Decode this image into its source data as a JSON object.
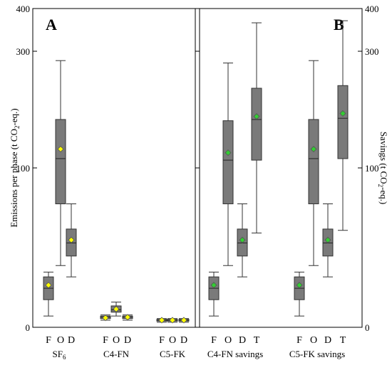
{
  "chart_data": {
    "type": "box",
    "yaxis": {
      "ylim": [
        0,
        400
      ],
      "scale": "sqrt",
      "ticks": [
        0,
        100,
        300,
        400
      ]
    },
    "panels": [
      {
        "letter": "A",
        "ylabel": {
          "main": "Emissions per phase (t CO",
          "sub": "2",
          "tail": "-eq.)"
        },
        "groups": [
          {
            "label": {
              "main": "SF",
              "sub": "6"
            },
            "boxes": [
              {
                "cat": "F",
                "min": 0.5,
                "q1": 3,
                "median": 6,
                "q3": 10,
                "max": 12,
                "mean": 7,
                "mean_color": "#ffff00"
              },
              {
                "cat": "O",
                "min": 15,
                "q1": 60,
                "median": 112,
                "q3": 170,
                "max": 280,
                "mean": 125,
                "mean_color": "#ffff00"
              },
              {
                "cat": "D",
                "min": 10,
                "q1": 20,
                "median": 28,
                "q3": 38,
                "max": 60,
                "mean": 30,
                "mean_color": "#ffff00"
              }
            ]
          },
          {
            "label": {
              "main": "C4-FN",
              "sub": ""
            },
            "boxes": [
              {
                "cat": "F",
                "min": 0.2,
                "q1": 0.3,
                "median": 0.4,
                "q3": 0.5,
                "max": 0.6,
                "mean": 0.35,
                "mean_color": "#ffff00"
              },
              {
                "cat": "O",
                "min": 0.5,
                "q1": 0.9,
                "median": 1.2,
                "q3": 1.8,
                "max": 2.5,
                "mean": 1.3,
                "mean_color": "#ffff00"
              },
              {
                "cat": "D",
                "min": 0.2,
                "q1": 0.3,
                "median": 0.4,
                "q3": 0.5,
                "max": 0.6,
                "mean": 0.4,
                "mean_color": "#ffff00"
              }
            ]
          },
          {
            "label": {
              "main": "C5-FK",
              "sub": ""
            },
            "boxes": [
              {
                "cat": "F",
                "min": 0.1,
                "q1": 0.15,
                "median": 0.2,
                "q3": 0.25,
                "max": 0.3,
                "mean": 0.2,
                "mean_color": "#ffff00"
              },
              {
                "cat": "O",
                "min": 0.1,
                "q1": 0.15,
                "median": 0.2,
                "q3": 0.25,
                "max": 0.3,
                "mean": 0.2,
                "mean_color": "#ffff00"
              },
              {
                "cat": "D",
                "min": 0.1,
                "q1": 0.15,
                "median": 0.2,
                "q3": 0.25,
                "max": 0.3,
                "mean": 0.2,
                "mean_color": "#ffff00"
              }
            ]
          }
        ]
      },
      {
        "letter": "B",
        "ylabel": {
          "main": "Savings (t CO",
          "sub": "2",
          "tail": "-eq.)"
        },
        "groups": [
          {
            "label": {
              "main": "C4-FN savings",
              "sub": ""
            },
            "boxes": [
              {
                "cat": "F",
                "min": 0.5,
                "q1": 3,
                "median": 6,
                "q3": 10,
                "max": 12,
                "mean": 7,
                "mean_color": "#33cc33"
              },
              {
                "cat": "O",
                "min": 15,
                "q1": 60,
                "median": 110,
                "q3": 168,
                "max": 275,
                "mean": 120,
                "mean_color": "#33cc33"
              },
              {
                "cat": "D",
                "min": 10,
                "q1": 20,
                "median": 28,
                "q3": 38,
                "max": 60,
                "mean": 30,
                "mean_color": "#33cc33"
              },
              {
                "cat": "T",
                "min": 35,
                "q1": 110,
                "median": 170,
                "q3": 225,
                "max": 365,
                "mean": 175,
                "mean_color": "#33cc33"
              }
            ]
          },
          {
            "label": {
              "main": "C5-FK savings",
              "sub": ""
            },
            "boxes": [
              {
                "cat": "F",
                "min": 0.5,
                "q1": 3,
                "median": 6,
                "q3": 10,
                "max": 12,
                "mean": 7,
                "mean_color": "#33cc33"
              },
              {
                "cat": "O",
                "min": 15,
                "q1": 60,
                "median": 112,
                "q3": 170,
                "max": 280,
                "mean": 125,
                "mean_color": "#33cc33"
              },
              {
                "cat": "D",
                "min": 10,
                "q1": 20,
                "median": 28,
                "q3": 38,
                "max": 60,
                "mean": 30,
                "mean_color": "#33cc33"
              },
              {
                "cat": "T",
                "min": 37,
                "q1": 112,
                "median": 172,
                "q3": 230,
                "max": 370,
                "mean": 180,
                "mean_color": "#33cc33"
              }
            ]
          }
        ]
      }
    ]
  }
}
